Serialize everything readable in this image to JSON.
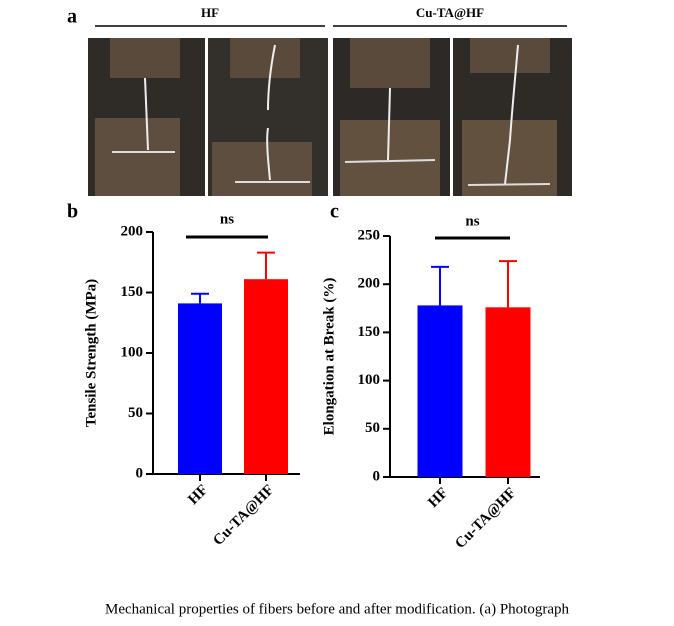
{
  "panel_a": {
    "label": "a",
    "groups": [
      "HF",
      "Cu-TA@HF"
    ]
  },
  "chart_data": [
    {
      "type": "bar",
      "label": "b",
      "ylabel": "Tensile Strength (MPa)",
      "categories": [
        "HF",
        "Cu-TA@HF"
      ],
      "values": [
        141,
        161
      ],
      "errors": [
        8,
        22
      ],
      "colors": [
        "#0000ff",
        "#ff0000"
      ],
      "ylim": [
        0,
        200
      ],
      "yticks": [
        0,
        50,
        100,
        150,
        200
      ],
      "annotation": "ns"
    },
    {
      "type": "bar",
      "label": "c",
      "ylabel": "Elongation at Break (%)",
      "categories": [
        "HF",
        "Cu-TA@HF"
      ],
      "values": [
        178,
        176
      ],
      "errors": [
        40,
        48
      ],
      "colors": [
        "#0000ff",
        "#ff0000"
      ],
      "ylim": [
        0,
        250
      ],
      "yticks": [
        0,
        50,
        100,
        150,
        200,
        250
      ],
      "annotation": "ns"
    }
  ],
  "caption": "Mechanical properties of fibers before and after modification. (a) Photograph"
}
